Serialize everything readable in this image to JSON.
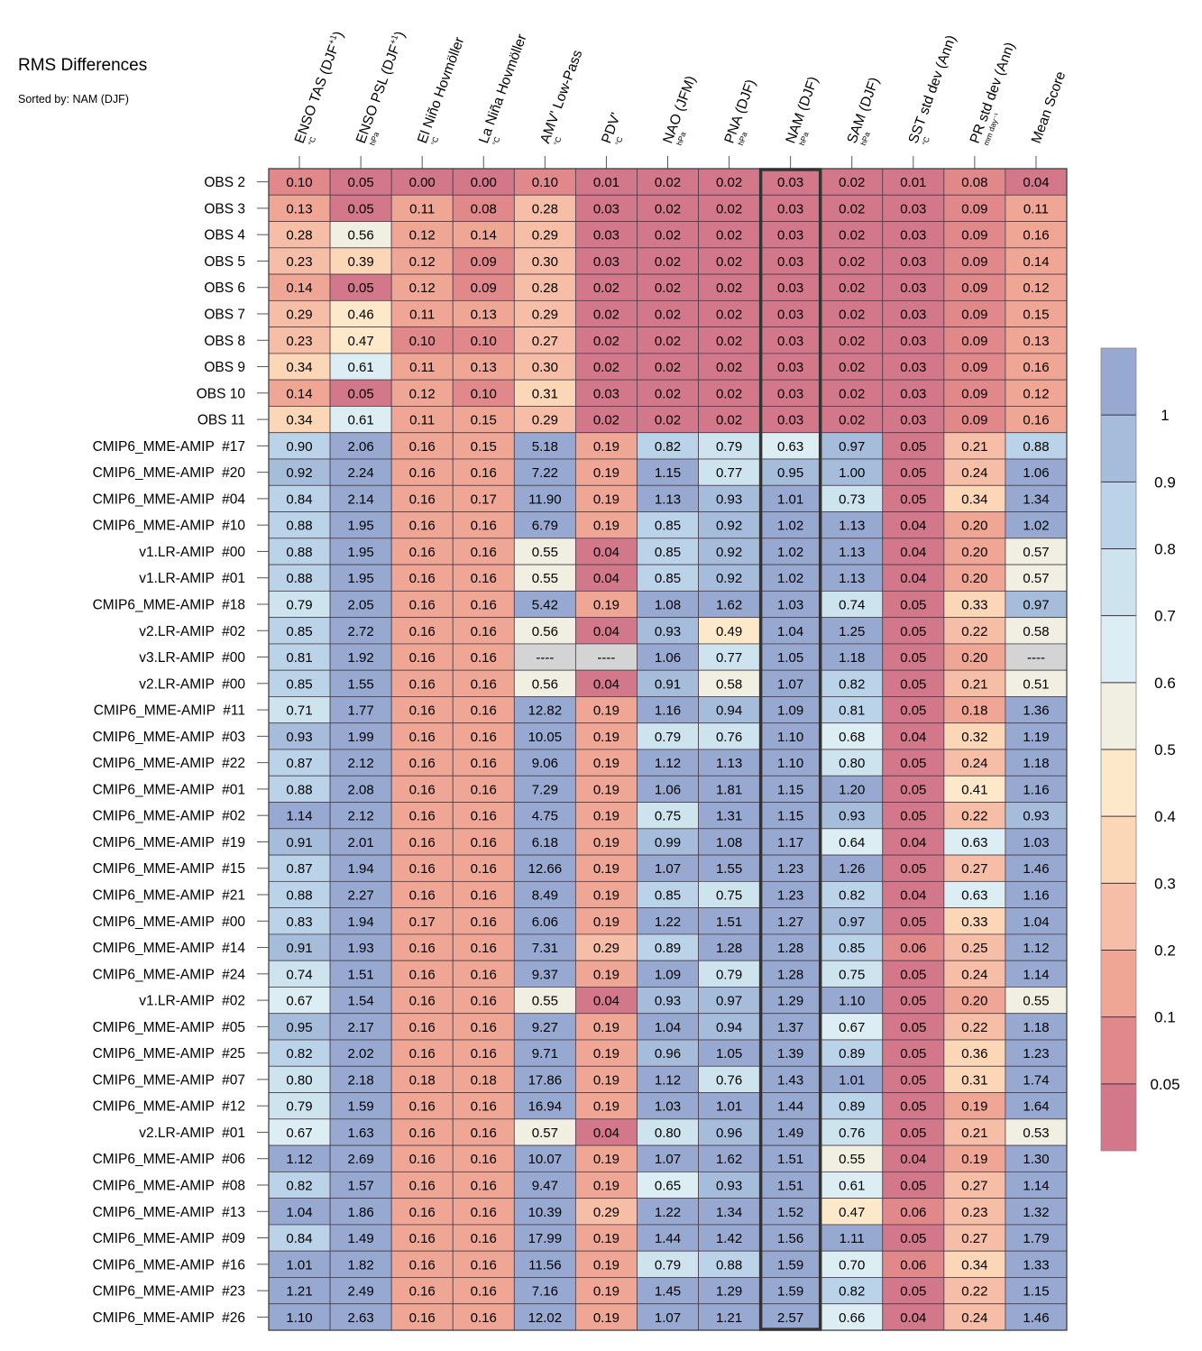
{
  "chart_data": {
    "type": "heatmap",
    "title": "RMS Differences",
    "subtitle": "Sorted by: NAM (DJF)",
    "highlighted_column": "NAM (DJF)",
    "missing_marker": "----",
    "columns": [
      {
        "label": "ENSO TAS (DJF",
        "sup": "+1",
        "close": ")",
        "unit": "°C"
      },
      {
        "label": "ENSO PSL (DJF",
        "sup": "+1",
        "close": ")",
        "unit": "hPa"
      },
      {
        "label": "El Niño Hovmöller",
        "sup": "",
        "close": "",
        "unit": "°C"
      },
      {
        "label": "La Niña Hovmöller",
        "sup": "",
        "close": "",
        "unit": "°C"
      },
      {
        "label": "AMV' Low-Pass",
        "sup": "",
        "close": "",
        "unit": "°C"
      },
      {
        "label": "PDV'",
        "sup": "",
        "close": "",
        "unit": "°C"
      },
      {
        "label": "NAO (JFM)",
        "sup": "",
        "close": "",
        "unit": "hPa"
      },
      {
        "label": "PNA (DJF)",
        "sup": "",
        "close": "",
        "unit": "hPa"
      },
      {
        "label": "NAM (DJF)",
        "sup": "",
        "close": "",
        "unit": "hPa"
      },
      {
        "label": "SAM (DJF)",
        "sup": "",
        "close": "",
        "unit": "hPa"
      },
      {
        "label": "SST std dev (Ann)",
        "sup": "",
        "close": "",
        "unit": "°C"
      },
      {
        "label": "PR std dev (Ann)",
        "sup": "",
        "close": "",
        "unit": "mm day⁻¹"
      },
      {
        "label": "Mean Score",
        "sup": "",
        "close": "",
        "unit": ""
      }
    ],
    "rows": [
      {
        "label": "OBS 2",
        "values": [
          0.1,
          0.05,
          0.0,
          0.0,
          0.1,
          0.01,
          0.02,
          0.02,
          0.03,
          0.02,
          0.01,
          0.08,
          0.04
        ]
      },
      {
        "label": "OBS 3",
        "values": [
          0.13,
          0.05,
          0.11,
          0.08,
          0.28,
          0.03,
          0.02,
          0.02,
          0.03,
          0.02,
          0.03,
          0.09,
          0.11
        ]
      },
      {
        "label": "OBS 4",
        "values": [
          0.28,
          0.56,
          0.12,
          0.14,
          0.29,
          0.03,
          0.02,
          0.02,
          0.03,
          0.02,
          0.03,
          0.09,
          0.16
        ]
      },
      {
        "label": "OBS 5",
        "values": [
          0.23,
          0.39,
          0.12,
          0.09,
          0.3,
          0.03,
          0.02,
          0.02,
          0.03,
          0.02,
          0.03,
          0.09,
          0.14
        ]
      },
      {
        "label": "OBS 6",
        "values": [
          0.14,
          0.05,
          0.12,
          0.09,
          0.28,
          0.02,
          0.02,
          0.02,
          0.03,
          0.02,
          0.03,
          0.09,
          0.12
        ]
      },
      {
        "label": "OBS 7",
        "values": [
          0.29,
          0.46,
          0.11,
          0.13,
          0.29,
          0.02,
          0.02,
          0.02,
          0.03,
          0.02,
          0.03,
          0.09,
          0.15
        ]
      },
      {
        "label": "OBS 8",
        "values": [
          0.23,
          0.47,
          0.1,
          0.1,
          0.27,
          0.02,
          0.02,
          0.02,
          0.03,
          0.02,
          0.03,
          0.09,
          0.13
        ]
      },
      {
        "label": "OBS 9",
        "values": [
          0.34,
          0.61,
          0.11,
          0.13,
          0.3,
          0.02,
          0.02,
          0.02,
          0.03,
          0.02,
          0.03,
          0.09,
          0.16
        ]
      },
      {
        "label": "OBS 10",
        "values": [
          0.14,
          0.05,
          0.12,
          0.1,
          0.31,
          0.03,
          0.02,
          0.02,
          0.03,
          0.02,
          0.03,
          0.09,
          0.12
        ]
      },
      {
        "label": "OBS 11",
        "values": [
          0.34,
          0.61,
          0.11,
          0.15,
          0.29,
          0.02,
          0.02,
          0.02,
          0.03,
          0.02,
          0.03,
          0.09,
          0.16
        ]
      },
      {
        "label": "CMIP6_MME-AMIP  #17",
        "values": [
          0.9,
          2.06,
          0.16,
          0.15,
          5.18,
          0.19,
          0.82,
          0.79,
          0.63,
          0.97,
          0.05,
          0.21,
          0.88
        ]
      },
      {
        "label": "CMIP6_MME-AMIP  #20",
        "values": [
          0.92,
          2.24,
          0.16,
          0.16,
          7.22,
          0.19,
          1.15,
          0.77,
          0.95,
          1.0,
          0.05,
          0.24,
          1.06
        ]
      },
      {
        "label": "CMIP6_MME-AMIP  #04",
        "values": [
          0.84,
          2.14,
          0.16,
          0.17,
          11.9,
          0.19,
          1.13,
          0.93,
          1.01,
          0.73,
          0.05,
          0.34,
          1.34
        ]
      },
      {
        "label": "CMIP6_MME-AMIP  #10",
        "values": [
          0.88,
          1.95,
          0.16,
          0.16,
          6.79,
          0.19,
          0.85,
          0.92,
          1.02,
          1.13,
          0.04,
          0.2,
          1.02
        ]
      },
      {
        "label": "v1.LR-AMIP  #00",
        "values": [
          0.88,
          1.95,
          0.16,
          0.16,
          0.55,
          0.04,
          0.85,
          0.92,
          1.02,
          1.13,
          0.04,
          0.2,
          0.57
        ]
      },
      {
        "label": "v1.LR-AMIP  #01",
        "values": [
          0.88,
          1.95,
          0.16,
          0.16,
          0.55,
          0.04,
          0.85,
          0.92,
          1.02,
          1.13,
          0.04,
          0.2,
          0.57
        ]
      },
      {
        "label": "CMIP6_MME-AMIP  #18",
        "values": [
          0.79,
          2.05,
          0.16,
          0.16,
          5.42,
          0.19,
          1.08,
          1.62,
          1.03,
          0.74,
          0.05,
          0.33,
          0.97
        ]
      },
      {
        "label": "v2.LR-AMIP  #02",
        "values": [
          0.85,
          2.72,
          0.16,
          0.16,
          0.56,
          0.04,
          0.93,
          0.49,
          1.04,
          1.25,
          0.05,
          0.22,
          0.58
        ]
      },
      {
        "label": "v3.LR-AMIP  #00",
        "values": [
          0.81,
          1.92,
          0.16,
          0.16,
          null,
          null,
          1.06,
          0.77,
          1.05,
          1.18,
          0.05,
          0.2,
          null
        ]
      },
      {
        "label": "v2.LR-AMIP  #00",
        "values": [
          0.85,
          1.55,
          0.16,
          0.16,
          0.56,
          0.04,
          0.91,
          0.58,
          1.07,
          0.82,
          0.05,
          0.21,
          0.51
        ]
      },
      {
        "label": "CMIP6_MME-AMIP  #11",
        "values": [
          0.71,
          1.77,
          0.16,
          0.16,
          12.82,
          0.19,
          1.16,
          0.94,
          1.09,
          0.81,
          0.05,
          0.18,
          1.36
        ]
      },
      {
        "label": "CMIP6_MME-AMIP  #03",
        "values": [
          0.93,
          1.99,
          0.16,
          0.16,
          10.05,
          0.19,
          0.79,
          0.76,
          1.1,
          0.68,
          0.04,
          0.32,
          1.19
        ]
      },
      {
        "label": "CMIP6_MME-AMIP  #22",
        "values": [
          0.87,
          2.12,
          0.16,
          0.16,
          9.06,
          0.19,
          1.12,
          1.13,
          1.1,
          0.8,
          0.05,
          0.24,
          1.18
        ]
      },
      {
        "label": "CMIP6_MME-AMIP  #01",
        "values": [
          0.88,
          2.08,
          0.16,
          0.16,
          7.29,
          0.19,
          1.06,
          1.81,
          1.15,
          1.2,
          0.05,
          0.41,
          1.16
        ]
      },
      {
        "label": "CMIP6_MME-AMIP  #02",
        "values": [
          1.14,
          2.12,
          0.16,
          0.16,
          4.75,
          0.19,
          0.75,
          1.31,
          1.15,
          0.93,
          0.05,
          0.22,
          0.93
        ]
      },
      {
        "label": "CMIP6_MME-AMIP  #19",
        "values": [
          0.91,
          2.01,
          0.16,
          0.16,
          6.18,
          0.19,
          0.99,
          1.08,
          1.17,
          0.64,
          0.04,
          0.63,
          1.03
        ]
      },
      {
        "label": "CMIP6_MME-AMIP  #15",
        "values": [
          0.87,
          1.94,
          0.16,
          0.16,
          12.66,
          0.19,
          1.07,
          1.55,
          1.23,
          1.26,
          0.05,
          0.27,
          1.46
        ]
      },
      {
        "label": "CMIP6_MME-AMIP  #21",
        "values": [
          0.88,
          2.27,
          0.16,
          0.16,
          8.49,
          0.19,
          0.85,
          0.75,
          1.23,
          0.82,
          0.04,
          0.63,
          1.16
        ]
      },
      {
        "label": "CMIP6_MME-AMIP  #00",
        "values": [
          0.83,
          1.94,
          0.17,
          0.16,
          6.06,
          0.19,
          1.22,
          1.51,
          1.27,
          0.97,
          0.05,
          0.33,
          1.04
        ]
      },
      {
        "label": "CMIP6_MME-AMIP  #14",
        "values": [
          0.91,
          1.93,
          0.16,
          0.16,
          7.31,
          0.29,
          0.89,
          1.28,
          1.28,
          0.85,
          0.06,
          0.25,
          1.12
        ]
      },
      {
        "label": "CMIP6_MME-AMIP  #24",
        "values": [
          0.74,
          1.51,
          0.16,
          0.16,
          9.37,
          0.19,
          1.09,
          0.79,
          1.28,
          0.75,
          0.05,
          0.24,
          1.14
        ]
      },
      {
        "label": "v1.LR-AMIP  #02",
        "values": [
          0.67,
          1.54,
          0.16,
          0.16,
          0.55,
          0.04,
          0.93,
          0.97,
          1.29,
          1.1,
          0.05,
          0.2,
          0.55
        ]
      },
      {
        "label": "CMIP6_MME-AMIP  #05",
        "values": [
          0.95,
          2.17,
          0.16,
          0.16,
          9.27,
          0.19,
          1.04,
          0.94,
          1.37,
          0.67,
          0.05,
          0.22,
          1.18
        ]
      },
      {
        "label": "CMIP6_MME-AMIP  #25",
        "values": [
          0.82,
          2.02,
          0.16,
          0.16,
          9.71,
          0.19,
          0.96,
          1.05,
          1.39,
          0.89,
          0.05,
          0.36,
          1.23
        ]
      },
      {
        "label": "CMIP6_MME-AMIP  #07",
        "values": [
          0.8,
          2.18,
          0.18,
          0.18,
          17.86,
          0.19,
          1.12,
          0.76,
          1.43,
          1.01,
          0.05,
          0.31,
          1.74
        ]
      },
      {
        "label": "CMIP6_MME-AMIP  #12",
        "values": [
          0.79,
          1.59,
          0.16,
          0.16,
          16.94,
          0.19,
          1.03,
          1.01,
          1.44,
          0.89,
          0.05,
          0.19,
          1.64
        ]
      },
      {
        "label": "v2.LR-AMIP  #01",
        "values": [
          0.67,
          1.63,
          0.16,
          0.16,
          0.57,
          0.04,
          0.8,
          0.96,
          1.49,
          0.76,
          0.05,
          0.21,
          0.53
        ]
      },
      {
        "label": "CMIP6_MME-AMIP  #06",
        "values": [
          1.12,
          2.69,
          0.16,
          0.16,
          10.07,
          0.19,
          1.07,
          1.62,
          1.51,
          0.55,
          0.04,
          0.19,
          1.3
        ]
      },
      {
        "label": "CMIP6_MME-AMIP  #08",
        "values": [
          0.82,
          1.57,
          0.16,
          0.16,
          9.47,
          0.19,
          0.65,
          0.93,
          1.51,
          0.61,
          0.05,
          0.27,
          1.14
        ]
      },
      {
        "label": "CMIP6_MME-AMIP  #13",
        "values": [
          1.04,
          1.86,
          0.16,
          0.16,
          10.39,
          0.29,
          1.22,
          1.34,
          1.52,
          0.47,
          0.06,
          0.23,
          1.32
        ]
      },
      {
        "label": "CMIP6_MME-AMIP  #09",
        "values": [
          0.84,
          1.49,
          0.16,
          0.16,
          17.99,
          0.19,
          1.44,
          1.42,
          1.56,
          1.11,
          0.05,
          0.27,
          1.79
        ]
      },
      {
        "label": "CMIP6_MME-AMIP  #16",
        "values": [
          1.01,
          1.82,
          0.16,
          0.16,
          11.56,
          0.19,
          0.79,
          0.88,
          1.59,
          0.7,
          0.06,
          0.34,
          1.33
        ]
      },
      {
        "label": "CMIP6_MME-AMIP  #23",
        "values": [
          1.21,
          2.49,
          0.16,
          0.16,
          7.16,
          0.19,
          1.45,
          1.29,
          1.59,
          0.82,
          0.05,
          0.22,
          1.15
        ]
      },
      {
        "label": "CMIP6_MME-AMIP  #26",
        "values": [
          1.1,
          2.63,
          0.16,
          0.16,
          12.02,
          0.19,
          1.07,
          1.21,
          2.57,
          0.66,
          0.04,
          0.24,
          1.46
        ]
      }
    ],
    "colorbar": {
      "boundaries": [
        0,
        0.05,
        0.1,
        0.2,
        0.3,
        0.4,
        0.5,
        0.6,
        0.7,
        0.8,
        0.9,
        1,
        999
      ],
      "colors": [
        "#d2788a",
        "#e1888b",
        "#f0a695",
        "#f6bea6",
        "#fbd6b7",
        "#fde9c9",
        "#f0efe2",
        "#dceef3",
        "#cde3ee",
        "#bbd3e8",
        "#a6bcdb",
        "#98a9d1"
      ],
      "tick_labels": [
        "0.05",
        "0.1",
        "0.2",
        "0.3",
        "0.4",
        "0.5",
        "0.6",
        "0.7",
        "0.8",
        "0.9",
        "1"
      ],
      "missing_color": "#d4d4d4"
    }
  }
}
